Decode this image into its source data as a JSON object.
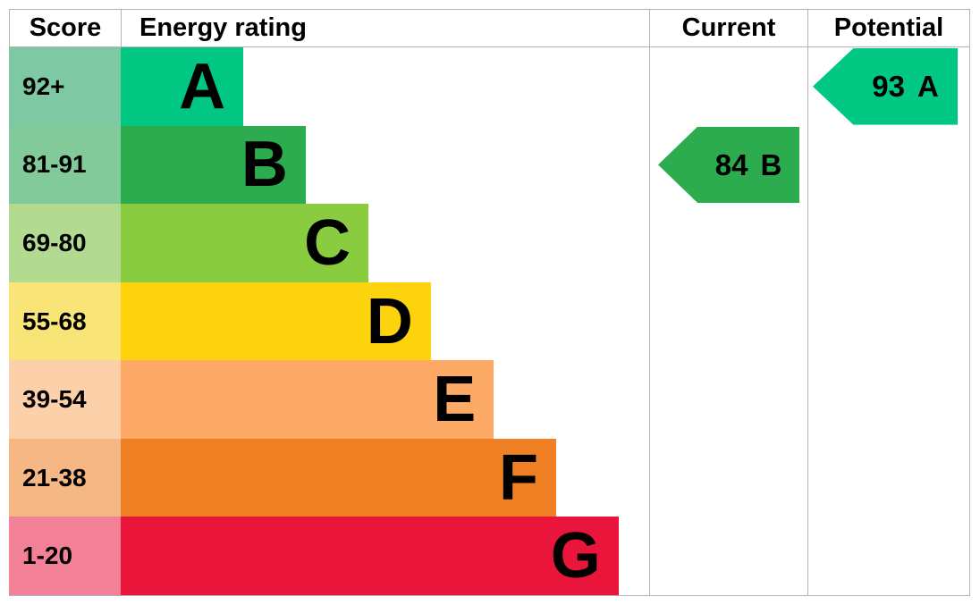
{
  "header": {
    "score": "Score",
    "energy_rating": "Energy rating",
    "current": "Current",
    "potential": "Potential"
  },
  "bands": [
    {
      "score": "92+",
      "letter": "A",
      "color": "#00c781",
      "tint": "#7ec9a4",
      "width_pct": 23.2
    },
    {
      "score": "81-91",
      "letter": "B",
      "color": "#2dac4f",
      "tint": "#82ca99",
      "width_pct": 35.0
    },
    {
      "score": "69-80",
      "letter": "C",
      "color": "#8acc3f",
      "tint": "#b2da90",
      "width_pct": 46.9
    },
    {
      "score": "55-68",
      "letter": "D",
      "color": "#fdd30e",
      "tint": "#f9e478",
      "width_pct": 58.7
    },
    {
      "score": "39-54",
      "letter": "E",
      "color": "#fcaa65",
      "tint": "#fcd0a8",
      "width_pct": 70.6
    },
    {
      "score": "21-38",
      "letter": "F",
      "color": "#ef8023",
      "tint": "#f5b885",
      "width_pct": 82.4
    },
    {
      "score": "1-20",
      "letter": "G",
      "color": "#e9153b",
      "tint": "#f28097",
      "width_pct": 94.2
    }
  ],
  "current": {
    "value": "84",
    "band": "B",
    "color": "#2dac4f",
    "band_index": 1
  },
  "potential": {
    "value": "93",
    "band": "A",
    "color": "#00c781",
    "band_index": 0
  },
  "border_color": "#b1b4b6",
  "chart_data": {
    "type": "bar",
    "title": "EPC energy efficiency rating",
    "categories": [
      "A",
      "B",
      "C",
      "D",
      "E",
      "F",
      "G"
    ],
    "score_ranges": [
      "92+",
      "81-91",
      "69-80",
      "55-68",
      "39-54",
      "21-38",
      "1-20"
    ],
    "bar_lengths_pct": [
      23.2,
      35.0,
      46.9,
      58.7,
      70.6,
      82.4,
      94.2
    ],
    "band_colors": [
      "#00c781",
      "#2dac4f",
      "#8acc3f",
      "#fdd30e",
      "#fcaa65",
      "#ef8023",
      "#e9153b"
    ],
    "column_headers": [
      "Score",
      "Energy rating",
      "Current",
      "Potential"
    ],
    "series": [
      {
        "name": "Current",
        "value": 84,
        "band": "B"
      },
      {
        "name": "Potential",
        "value": 93,
        "band": "A"
      }
    ],
    "grid": false,
    "legend_position": "none"
  }
}
